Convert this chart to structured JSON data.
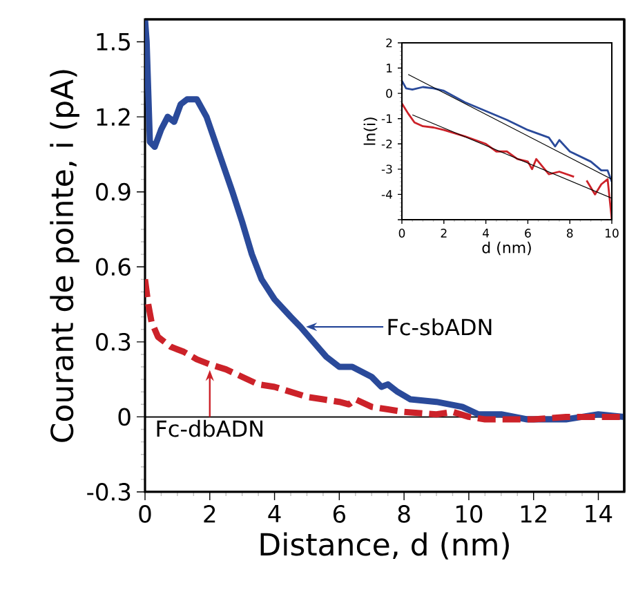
{
  "chart_data": [
    {
      "type": "line",
      "xlabel": "Distance, d (nm)",
      "ylabel": "Courant de pointe, i (pA)",
      "xlim": [
        0,
        14.8
      ],
      "ylim": [
        -0.3,
        1.59
      ],
      "xticks": [
        0,
        2,
        4,
        6,
        8,
        10,
        12,
        14
      ],
      "yticks": [
        -0.3,
        0,
        0.3,
        0.6,
        0.9,
        1.2,
        1.5
      ],
      "series": [
        {
          "name": "Fc-sbADN",
          "color": "#2a4a9a",
          "line_style": "solid",
          "x": [
            0,
            0.05,
            0.15,
            0.3,
            0.5,
            0.7,
            0.9,
            1.1,
            1.3,
            1.6,
            1.9,
            2.3,
            2.7,
            3.0,
            3.3,
            3.6,
            4.0,
            4.5,
            4.8,
            5.2,
            5.6,
            6.0,
            6.4,
            7.0,
            7.3,
            7.5,
            7.8,
            8.2,
            9.0,
            9.8,
            10.3,
            11,
            11.8,
            12.5,
            13,
            13.5,
            14,
            14.8
          ],
          "values": [
            1.59,
            1.5,
            1.1,
            1.08,
            1.15,
            1.2,
            1.18,
            1.25,
            1.27,
            1.27,
            1.2,
            1.05,
            0.9,
            0.78,
            0.65,
            0.55,
            0.47,
            0.4,
            0.36,
            0.3,
            0.24,
            0.2,
            0.2,
            0.16,
            0.12,
            0.13,
            0.1,
            0.07,
            0.06,
            0.04,
            0.01,
            0.01,
            -0.01,
            -0.01,
            -0.01,
            0.0,
            0.01,
            0.0
          ]
        },
        {
          "name": "Fc-dbADN",
          "color": "#cc2229",
          "line_style": "dashed",
          "x": [
            0,
            0.1,
            0.2,
            0.4,
            0.8,
            1.2,
            1.6,
            2,
            2.5,
            3,
            3.5,
            4,
            4.5,
            5,
            5.5,
            6,
            6.3,
            6.5,
            7,
            7.5,
            8,
            9,
            9.5,
            10,
            10.5,
            11,
            12,
            13,
            14,
            14.8
          ],
          "values": [
            0.55,
            0.45,
            0.38,
            0.32,
            0.28,
            0.26,
            0.23,
            0.21,
            0.19,
            0.16,
            0.13,
            0.12,
            0.1,
            0.08,
            0.07,
            0.06,
            0.05,
            0.07,
            0.04,
            0.03,
            0.02,
            0.01,
            0.02,
            0.0,
            -0.01,
            -0.01,
            -0.01,
            0.0,
            0.0,
            0.0
          ]
        }
      ],
      "ref_lines": [
        {
          "axis": "y",
          "value": 0,
          "color": "#000000"
        }
      ]
    },
    {
      "type": "line",
      "xlabel": "d (nm)",
      "ylabel": "ln(i)",
      "xlim": [
        0,
        10
      ],
      "ylim": [
        -5,
        2
      ],
      "xticks": [
        0,
        2,
        4,
        6,
        8,
        10
      ],
      "yticks": [
        {
          "value": -5,
          "label": null
        },
        -4,
        -3,
        -2,
        -1,
        0,
        1,
        2
      ],
      "series": [
        {
          "color": "#2a4a9a",
          "x": [
            0,
            0.2,
            0.5,
            1,
            1.5,
            2,
            3,
            4,
            5,
            6,
            6.5,
            7,
            7.3,
            7.5,
            8,
            9,
            9.5,
            9.8,
            10
          ],
          "values": [
            0.5,
            0.2,
            0.15,
            0.25,
            0.2,
            0.1,
            -0.35,
            -0.7,
            -1.05,
            -1.45,
            -1.6,
            -1.75,
            -2.1,
            -1.85,
            -2.3,
            -2.7,
            -3.05,
            -3.05,
            -3.5
          ]
        },
        {
          "color": "#cc2229",
          "x": [
            0,
            0.3,
            0.6,
            1,
            1.5,
            2,
            3,
            3.5,
            4,
            4.5,
            5,
            5.5,
            6,
            6.2,
            6.4,
            6.8,
            7,
            7.5,
            8.2,
            8.5,
            8.8,
            9.2,
            9.5,
            9.8,
            10
          ],
          "values": [
            -0.4,
            -0.8,
            -1.15,
            -1.3,
            -1.35,
            -1.45,
            -1.7,
            -1.85,
            -2.0,
            -2.3,
            -2.3,
            -2.6,
            -2.7,
            -3.0,
            -2.6,
            -3.0,
            -3.2,
            -3.1,
            -3.3,
            null,
            -3.45,
            -4.0,
            -3.6,
            -3.4,
            -5.0
          ]
        },
        {
          "color": "#000000",
          "x": [
            0.3,
            10
          ],
          "values": [
            0.75,
            -3.4
          ]
        },
        {
          "color": "#000000",
          "x": [
            0.5,
            10
          ],
          "values": [
            -0.85,
            -4.15
          ]
        }
      ]
    }
  ]
}
